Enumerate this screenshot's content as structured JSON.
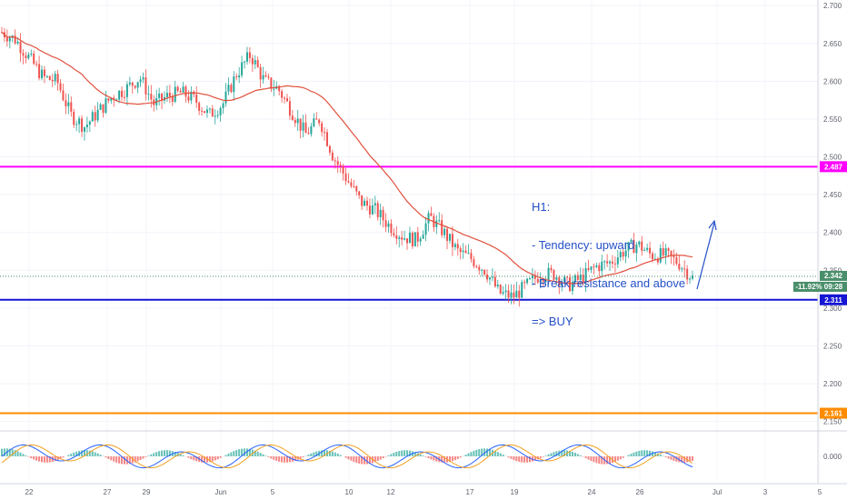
{
  "chart_data": {
    "type": "candlestick",
    "timeframe": "H1",
    "x_tick_labels": [
      "22",
      "27",
      "29",
      "Jun",
      "5",
      "10",
      "12",
      "17",
      "19",
      "24",
      "26",
      "Jul",
      "3",
      "5"
    ],
    "y_tick_labels": [
      "2.700",
      "2.650",
      "2.600",
      "2.550",
      "2.500",
      "2.450",
      "2.400",
      "2.350",
      "2.300",
      "2.250",
      "2.200",
      "2.150"
    ],
    "ylim": [
      2.14,
      2.705
    ],
    "levels": [
      {
        "label": "2.487",
        "value": 2.487,
        "color": "#ff00ff"
      },
      {
        "label": "2.311",
        "value": 2.311,
        "color": "#1515d4"
      },
      {
        "label": "2.161",
        "value": 2.161,
        "color": "#ff8c00"
      }
    ],
    "last_price": {
      "value": 2.342,
      "label": "2.342",
      "change_label": "-11.92%",
      "countdown": "09:28",
      "color": "#4a8f6b"
    },
    "price_path_x": [
      0,
      0.02,
      0.04,
      0.06,
      0.08,
      0.1,
      0.12,
      0.14,
      0.16,
      0.18,
      0.2,
      0.22,
      0.24,
      0.26,
      0.28,
      0.3,
      0.32,
      0.34,
      0.36,
      0.38,
      0.4,
      0.42,
      0.44,
      0.46,
      0.48,
      0.5,
      0.52,
      0.54,
      0.56,
      0.58,
      0.6,
      0.62,
      0.64,
      0.66,
      0.68,
      0.7,
      0.72,
      0.74,
      0.76,
      0.78,
      0.8,
      0.82,
      0.84,
      0.86,
      0.88,
      0.9,
      0.92,
      0.94,
      0.96,
      0.98,
      1.0
    ],
    "price_path_y": [
      2.665,
      2.655,
      2.63,
      2.605,
      2.6,
      2.555,
      2.54,
      2.56,
      2.58,
      2.59,
      2.605,
      2.57,
      2.58,
      2.585,
      2.575,
      2.555,
      2.57,
      2.61,
      2.635,
      2.6,
      2.59,
      2.56,
      2.53,
      2.55,
      2.5,
      2.47,
      2.44,
      2.43,
      2.41,
      2.395,
      2.39,
      2.42,
      2.4,
      2.375,
      2.365,
      2.35,
      2.32,
      2.315,
      2.33,
      2.345,
      2.345,
      2.33,
      2.34,
      2.355,
      2.36,
      2.375,
      2.385,
      2.37,
      2.37,
      2.36,
      2.34
    ],
    "oscillator": {
      "ytick_label": "0.000"
    },
    "annotation": {
      "lines": [
        "H1:",
        "- Tendency: upward",
        "- Break resistance and above",
        "=> BUY"
      ]
    }
  }
}
